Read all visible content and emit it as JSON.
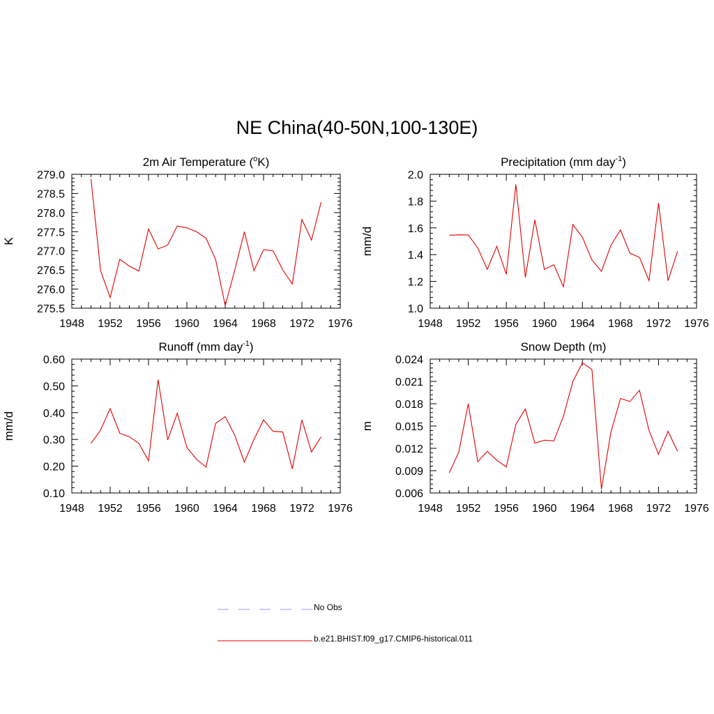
{
  "title": "NE China(40-50N,100-130E)",
  "colors": {
    "model": "#e00000",
    "obs": "#9999ee",
    "axis": "#000000"
  },
  "legend": [
    {
      "label": "No Obs",
      "style": "dashed",
      "color": "#9999ee"
    },
    {
      "label": "b.e21.BHIST.f09_g17.CMIP6-historical.011",
      "style": "solid",
      "color": "#e00000"
    }
  ],
  "chart_data": [
    {
      "type": "line",
      "title": "2m Air Temperature (",
      "title_sup": "o",
      "title_after": "K)",
      "ylabel": "K",
      "xlim": [
        1948,
        1976
      ],
      "xticks": [
        1948,
        1952,
        1956,
        1960,
        1964,
        1968,
        1972,
        1976
      ],
      "ylim": [
        275.5,
        279.0
      ],
      "yticks": [
        "275.5",
        "276.0",
        "276.5",
        "277.0",
        "277.5",
        "278.0",
        "278.5",
        "279.0"
      ],
      "x": [
        1950,
        1951,
        1952,
        1953,
        1954,
        1955,
        1956,
        1957,
        1958,
        1959,
        1960,
        1961,
        1962,
        1963,
        1964,
        1965,
        1966,
        1967,
        1968,
        1969,
        1970,
        1971,
        1972,
        1973,
        1974
      ],
      "series": [
        {
          "values": [
            278.88,
            276.48,
            275.78,
            276.78,
            276.6,
            276.47,
            277.57,
            277.05,
            277.15,
            277.65,
            277.6,
            277.5,
            277.33,
            276.77,
            275.57,
            276.5,
            277.5,
            276.48,
            277.03,
            277.0,
            276.5,
            276.13,
            277.82,
            277.28,
            278.27
          ]
        }
      ]
    },
    {
      "type": "line",
      "title": "Precipitation (mm day",
      "title_sup": "-1",
      "title_after": ")",
      "ylabel": "mm/d",
      "xlim": [
        1948,
        1976
      ],
      "xticks": [
        1948,
        1952,
        1956,
        1960,
        1964,
        1968,
        1972,
        1976
      ],
      "ylim": [
        1.0,
        2.0
      ],
      "yticks": [
        "1.0",
        "1.2",
        "1.4",
        "1.6",
        "1.8",
        "2.0"
      ],
      "x": [
        1950,
        1951,
        1952,
        1953,
        1954,
        1955,
        1956,
        1957,
        1958,
        1959,
        1960,
        1961,
        1962,
        1963,
        1964,
        1965,
        1966,
        1967,
        1968,
        1969,
        1970,
        1971,
        1972,
        1973,
        1974
      ],
      "series": [
        {
          "values": [
            1.545,
            1.548,
            1.547,
            1.45,
            1.29,
            1.462,
            1.253,
            1.925,
            1.23,
            1.66,
            1.29,
            1.325,
            1.16,
            1.625,
            1.53,
            1.36,
            1.275,
            1.47,
            1.585,
            1.41,
            1.38,
            1.205,
            1.785,
            1.205,
            1.425
          ]
        }
      ]
    },
    {
      "type": "line",
      "title": "Runoff (mm day",
      "title_sup": "-1",
      "title_after": ")",
      "ylabel": "mm/d",
      "xlim": [
        1948,
        1976
      ],
      "xticks": [
        1948,
        1952,
        1956,
        1960,
        1964,
        1968,
        1972,
        1976
      ],
      "ylim": [
        0.1,
        0.6
      ],
      "yticks": [
        "0.10",
        "0.20",
        "0.30",
        "0.40",
        "0.50",
        "0.60"
      ],
      "x": [
        1950,
        1951,
        1952,
        1953,
        1954,
        1955,
        1956,
        1957,
        1958,
        1959,
        1960,
        1961,
        1962,
        1963,
        1964,
        1965,
        1966,
        1967,
        1968,
        1969,
        1970,
        1971,
        1972,
        1973,
        1974
      ],
      "series": [
        {
          "values": [
            0.285,
            0.335,
            0.415,
            0.323,
            0.31,
            0.285,
            0.22,
            0.523,
            0.298,
            0.398,
            0.27,
            0.226,
            0.197,
            0.36,
            0.385,
            0.315,
            0.215,
            0.3,
            0.373,
            0.33,
            0.328,
            0.19,
            0.373,
            0.253,
            0.31
          ]
        }
      ]
    },
    {
      "type": "line",
      "title": "Snow Depth (m)",
      "title_sup": "",
      "title_after": "",
      "ylabel": "m",
      "xlim": [
        1948,
        1976
      ],
      "xticks": [
        1948,
        1952,
        1956,
        1960,
        1964,
        1968,
        1972,
        1976
      ],
      "ylim": [
        0.006,
        0.024
      ],
      "yticks": [
        "0.006",
        "0.009",
        "0.012",
        "0.015",
        "0.018",
        "0.021",
        "0.024"
      ],
      "x": [
        1950,
        1951,
        1952,
        1953,
        1954,
        1955,
        1956,
        1957,
        1958,
        1959,
        1960,
        1961,
        1962,
        1963,
        1964,
        1965,
        1966,
        1967,
        1968,
        1969,
        1970,
        1971,
        1972,
        1973,
        1974
      ],
      "series": [
        {
          "values": [
            0.0087,
            0.0115,
            0.018,
            0.0102,
            0.0116,
            0.0104,
            0.0095,
            0.0152,
            0.0173,
            0.0127,
            0.0131,
            0.013,
            0.0163,
            0.021,
            0.0235,
            0.0226,
            0.0065,
            0.0142,
            0.0187,
            0.0183,
            0.0198,
            0.0144,
            0.0112,
            0.0143,
            0.0116
          ]
        }
      ]
    }
  ]
}
